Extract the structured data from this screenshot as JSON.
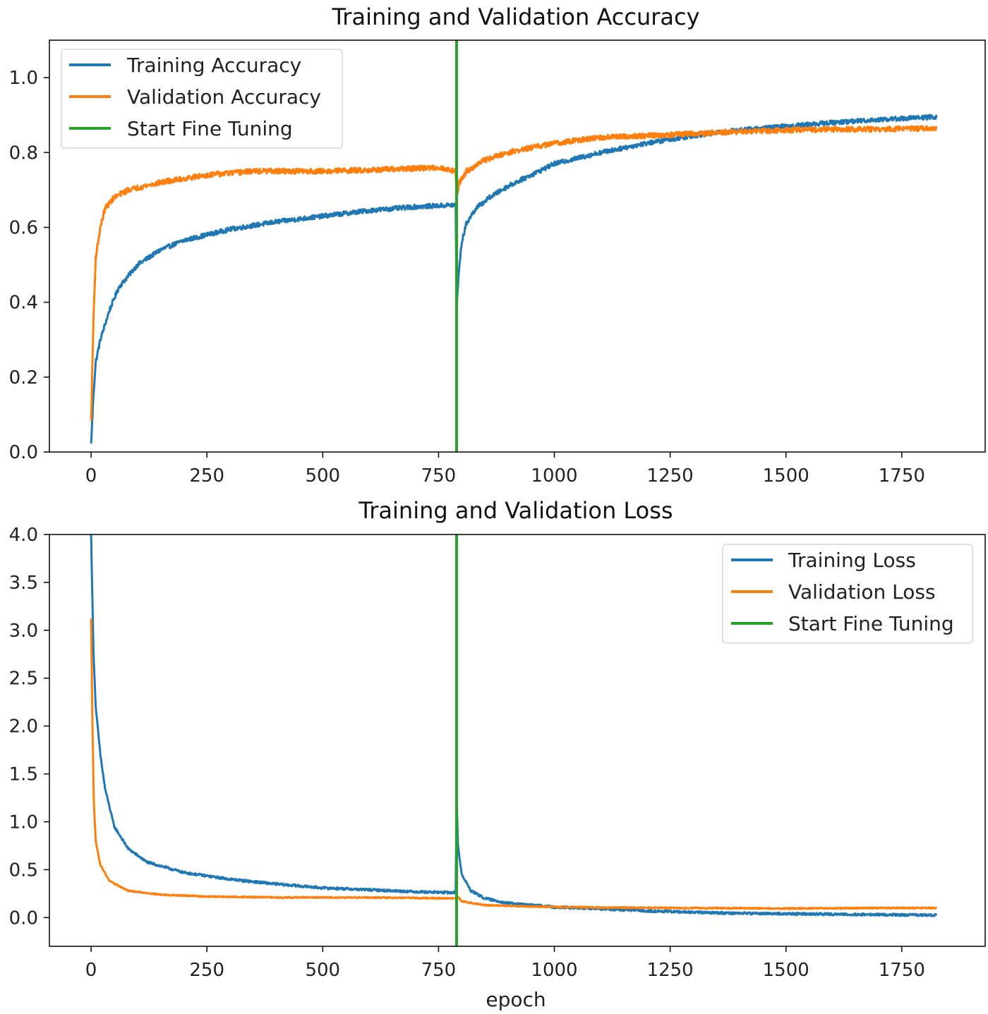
{
  "chart_data": [
    {
      "type": "line",
      "title": "Training and Validation Accuracy",
      "xlabel": "",
      "ylabel": "",
      "xlim": [
        -90,
        1930
      ],
      "ylim": [
        0.0,
        1.1
      ],
      "xticks": [
        0,
        250,
        500,
        750,
        1000,
        1250,
        1500,
        1750
      ],
      "xtick_labels": [
        "0",
        "250",
        "500",
        "750",
        "1000",
        "1250",
        "1500",
        "1750"
      ],
      "yticks": [
        0.0,
        0.2,
        0.4,
        0.6,
        0.8,
        1.0
      ],
      "ytick_labels": [
        "0.0",
        "0.2",
        "0.4",
        "0.6",
        "0.8",
        "1.0"
      ],
      "legend_position": "top-left",
      "series": [
        {
          "name": "Training Accuracy",
          "color": "#1f77b4",
          "noise": 0.006,
          "points": [
            [
              0,
              0.02
            ],
            [
              5,
              0.15
            ],
            [
              10,
              0.24
            ],
            [
              20,
              0.3
            ],
            [
              40,
              0.38
            ],
            [
              60,
              0.44
            ],
            [
              100,
              0.5
            ],
            [
              150,
              0.54
            ],
            [
              200,
              0.565
            ],
            [
              250,
              0.58
            ],
            [
              300,
              0.595
            ],
            [
              400,
              0.615
            ],
            [
              500,
              0.63
            ],
            [
              600,
              0.645
            ],
            [
              700,
              0.655
            ],
            [
              787,
              0.66
            ],
            [
              789,
              0.38
            ],
            [
              793,
              0.47
            ],
            [
              800,
              0.56
            ],
            [
              810,
              0.61
            ],
            [
              830,
              0.65
            ],
            [
              860,
              0.68
            ],
            [
              900,
              0.71
            ],
            [
              950,
              0.74
            ],
            [
              1000,
              0.77
            ],
            [
              1100,
              0.8
            ],
            [
              1200,
              0.825
            ],
            [
              1300,
              0.845
            ],
            [
              1400,
              0.86
            ],
            [
              1500,
              0.87
            ],
            [
              1600,
              0.88
            ],
            [
              1700,
              0.888
            ],
            [
              1825,
              0.895
            ]
          ]
        },
        {
          "name": "Validation Accuracy",
          "color": "#ff7f0e",
          "noise": 0.007,
          "points": [
            [
              0,
              0.08
            ],
            [
              5,
              0.35
            ],
            [
              10,
              0.52
            ],
            [
              20,
              0.6
            ],
            [
              30,
              0.65
            ],
            [
              50,
              0.68
            ],
            [
              80,
              0.7
            ],
            [
              150,
              0.72
            ],
            [
              250,
              0.74
            ],
            [
              350,
              0.75
            ],
            [
              500,
              0.75
            ],
            [
              650,
              0.755
            ],
            [
              750,
              0.76
            ],
            [
              787,
              0.75
            ],
            [
              789,
              0.68
            ],
            [
              795,
              0.72
            ],
            [
              810,
              0.75
            ],
            [
              850,
              0.78
            ],
            [
              900,
              0.8
            ],
            [
              1000,
              0.825
            ],
            [
              1100,
              0.84
            ],
            [
              1200,
              0.845
            ],
            [
              1300,
              0.85
            ],
            [
              1400,
              0.855
            ],
            [
              1500,
              0.86
            ],
            [
              1600,
              0.862
            ],
            [
              1700,
              0.862
            ],
            [
              1825,
              0.865
            ]
          ]
        }
      ],
      "vline": {
        "name": "Start Fine Tuning",
        "x": 789,
        "color": "#2ca02c"
      }
    },
    {
      "type": "line",
      "title": "Training and Validation Loss",
      "xlabel": "epoch",
      "ylabel": "",
      "xlim": [
        -90,
        1930
      ],
      "ylim": [
        -0.3,
        4.0
      ],
      "xticks": [
        0,
        250,
        500,
        750,
        1000,
        1250,
        1500,
        1750
      ],
      "xtick_labels": [
        "0",
        "250",
        "500",
        "750",
        "1000",
        "1250",
        "1500",
        "1750"
      ],
      "yticks": [
        0.0,
        0.5,
        1.0,
        1.5,
        2.0,
        2.5,
        3.0,
        3.5,
        4.0
      ],
      "ytick_labels": [
        "0.0",
        "0.5",
        "1.0",
        "1.5",
        "2.0",
        "2.5",
        "3.0",
        "3.5",
        "4.0"
      ],
      "legend_position": "top-right",
      "series": [
        {
          "name": "Training Loss",
          "color": "#1f77b4",
          "noise": 0.012,
          "points": [
            [
              0,
              4.0
            ],
            [
              5,
              2.8
            ],
            [
              10,
              2.2
            ],
            [
              20,
              1.7
            ],
            [
              30,
              1.35
            ],
            [
              50,
              0.95
            ],
            [
              80,
              0.72
            ],
            [
              120,
              0.58
            ],
            [
              200,
              0.47
            ],
            [
              300,
              0.4
            ],
            [
              400,
              0.35
            ],
            [
              500,
              0.31
            ],
            [
              600,
              0.29
            ],
            [
              700,
              0.27
            ],
            [
              787,
              0.26
            ],
            [
              789,
              1.28
            ],
            [
              792,
              0.75
            ],
            [
              800,
              0.45
            ],
            [
              820,
              0.28
            ],
            [
              850,
              0.2
            ],
            [
              900,
              0.15
            ],
            [
              1000,
              0.11
            ],
            [
              1100,
              0.09
            ],
            [
              1200,
              0.07
            ],
            [
              1300,
              0.055
            ],
            [
              1400,
              0.045
            ],
            [
              1500,
              0.04
            ],
            [
              1600,
              0.035
            ],
            [
              1700,
              0.03
            ],
            [
              1825,
              0.025
            ]
          ]
        },
        {
          "name": "Validation Loss",
          "color": "#ff7f0e",
          "noise": 0.006,
          "points": [
            [
              0,
              3.12
            ],
            [
              3,
              2.0
            ],
            [
              6,
              1.2
            ],
            [
              10,
              0.8
            ],
            [
              20,
              0.55
            ],
            [
              40,
              0.38
            ],
            [
              80,
              0.28
            ],
            [
              150,
              0.24
            ],
            [
              250,
              0.22
            ],
            [
              400,
              0.21
            ],
            [
              600,
              0.21
            ],
            [
              787,
              0.2
            ],
            [
              789,
              0.23
            ],
            [
              800,
              0.17
            ],
            [
              850,
              0.13
            ],
            [
              950,
              0.115
            ],
            [
              1100,
              0.105
            ],
            [
              1300,
              0.1
            ],
            [
              1500,
              0.095
            ],
            [
              1700,
              0.1
            ],
            [
              1825,
              0.1
            ]
          ]
        }
      ],
      "vline": {
        "name": "Start Fine Tuning",
        "x": 789,
        "color": "#2ca02c"
      }
    }
  ]
}
